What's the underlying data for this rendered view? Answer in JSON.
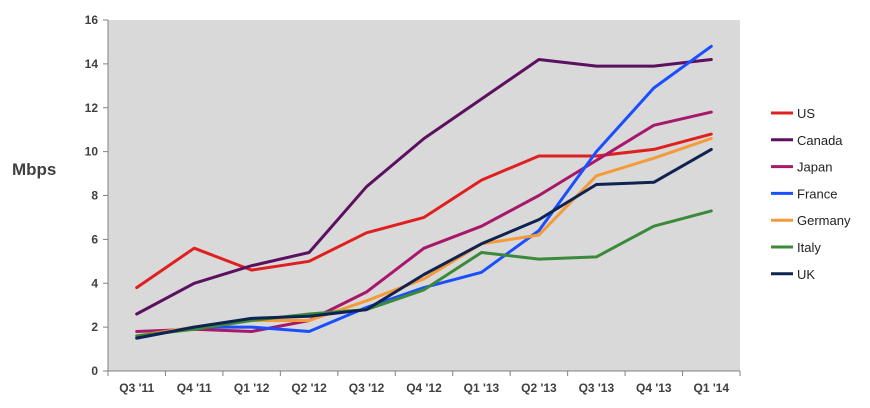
{
  "chart_data": {
    "type": "line",
    "title": "",
    "xlabel": "",
    "ylabel": "Mbps",
    "categories": [
      "Q3 '11",
      "Q4 '11",
      "Q1 '12",
      "Q2 '12",
      "Q3 '12",
      "Q4 '12",
      "Q1 '13",
      "Q2 '13",
      "Q3 '13",
      "Q4 '13",
      "Q1 '14"
    ],
    "ylim": [
      0,
      16
    ],
    "yticks": [
      0,
      2,
      4,
      6,
      8,
      10,
      12,
      14,
      16
    ],
    "grid": false,
    "plot_background": "#d9d9d9",
    "legend_position": "right",
    "series": [
      {
        "name": "US",
        "color": "#e02020",
        "values": [
          3.8,
          5.6,
          4.6,
          5.0,
          6.3,
          7.0,
          8.7,
          9.8,
          9.8,
          10.1,
          10.8
        ]
      },
      {
        "name": "Canada",
        "color": "#5b1060",
        "values": [
          2.6,
          4.0,
          4.8,
          5.4,
          8.4,
          10.6,
          12.4,
          14.2,
          13.9,
          13.9,
          14.2
        ]
      },
      {
        "name": "Japan",
        "color": "#a8186a",
        "values": [
          1.8,
          1.9,
          1.8,
          2.3,
          3.6,
          5.6,
          6.6,
          8.0,
          9.6,
          11.2,
          11.8
        ]
      },
      {
        "name": "France",
        "color": "#1a4fff",
        "values": [
          1.5,
          2.0,
          2.0,
          1.8,
          2.9,
          3.8,
          4.5,
          6.4,
          10.0,
          12.9,
          14.8
        ]
      },
      {
        "name": "Germany",
        "color": "#f59a38",
        "values": [
          1.6,
          2.0,
          2.3,
          2.3,
          3.2,
          4.2,
          5.8,
          6.2,
          8.9,
          9.7,
          10.6
        ]
      },
      {
        "name": "Italy",
        "color": "#3b8a3b",
        "values": [
          1.6,
          1.9,
          2.3,
          2.6,
          2.8,
          3.7,
          5.4,
          5.1,
          5.2,
          6.6,
          7.3
        ]
      },
      {
        "name": "UK",
        "color": "#0f2352",
        "values": [
          1.5,
          2.0,
          2.4,
          2.5,
          2.8,
          4.4,
          5.8,
          6.9,
          8.5,
          8.6,
          10.1
        ]
      }
    ]
  }
}
